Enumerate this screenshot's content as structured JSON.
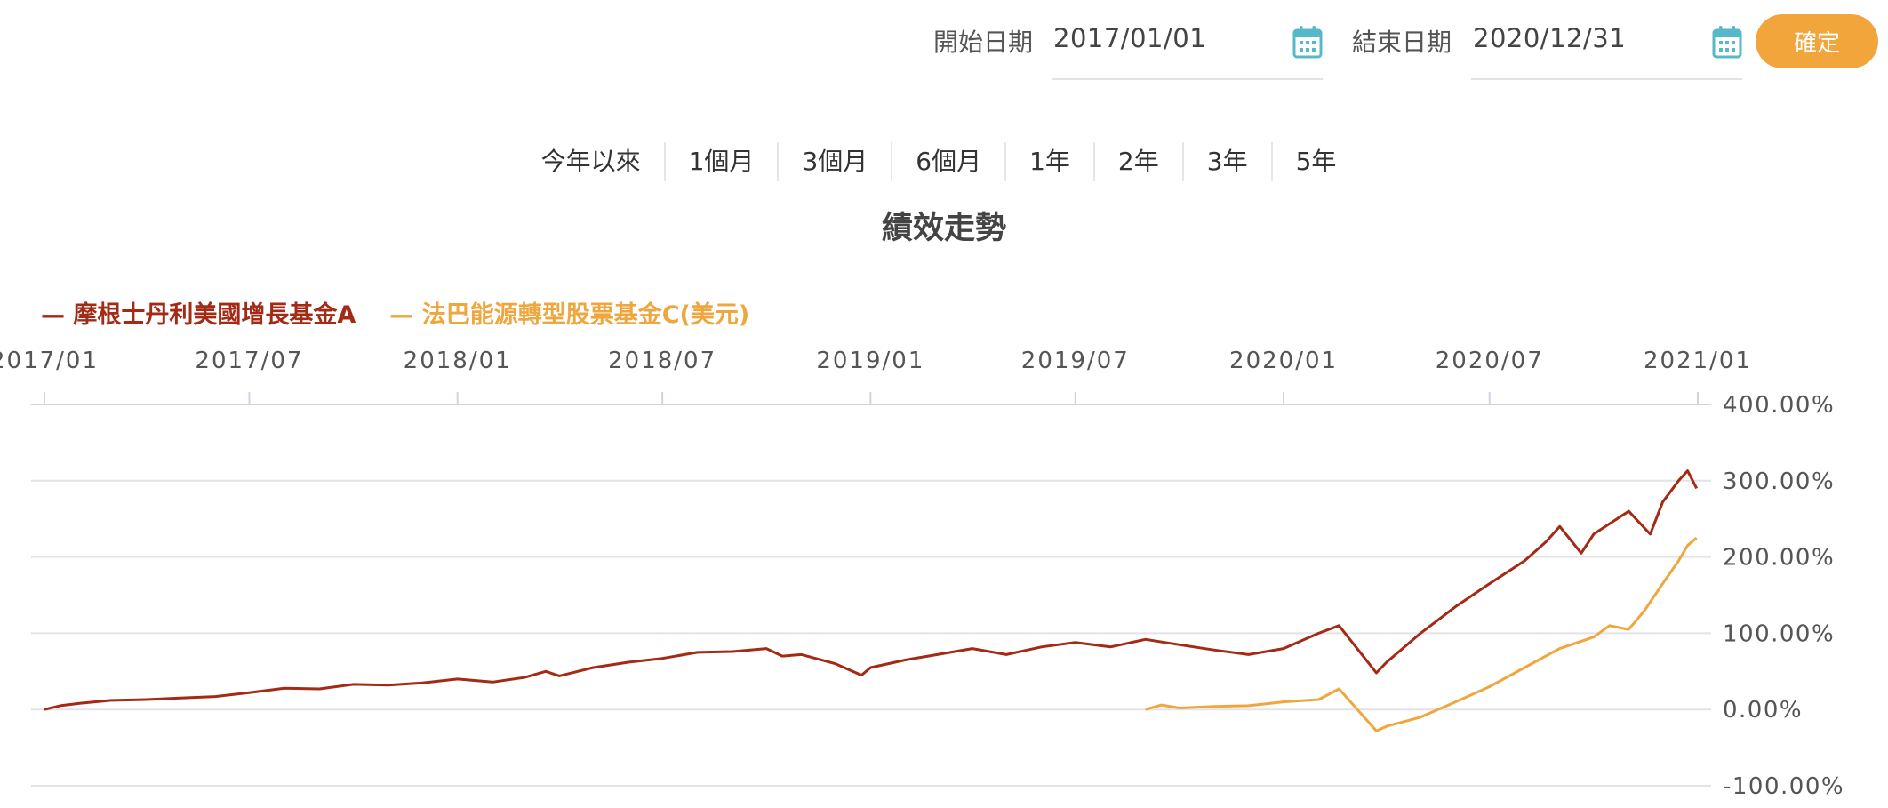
{
  "date_range": {
    "start_label": "開始日期",
    "start_value": "2017/01/01",
    "end_label": "結束日期",
    "end_value": "2020/12/31",
    "confirm_label": "確定",
    "icon": "calendar-icon"
  },
  "range_tabs": [
    "今年以來",
    "1個月",
    "3個月",
    "6個月",
    "1年",
    "2年",
    "3年",
    "5年"
  ],
  "colors": {
    "accent": "#f1a53a",
    "icon": "#55b9c9",
    "series_a": "#a32a14",
    "series_b": "#eea73e",
    "grid": "#e3e3e8"
  },
  "chart_data": {
    "type": "line",
    "title": "績效走勢",
    "legend_position": "top-left",
    "x_axis_position": "top",
    "y_axis_position": "right",
    "x_range": [
      "2017-01-01",
      "2021-01-01"
    ],
    "y_range": [
      -100,
      400
    ],
    "x_ticks": [
      "2017/01",
      "2017/07",
      "2018/01",
      "2018/07",
      "2019/01",
      "2019/07",
      "2020/01",
      "2020/07",
      "2021/01"
    ],
    "y_ticks": [
      "400.00%",
      "300.00%",
      "200.00%",
      "100.00%",
      "0.00%",
      "-100.00%"
    ],
    "y_tick_values": [
      400,
      300,
      200,
      100,
      0,
      -100
    ],
    "grid": true,
    "series": [
      {
        "name": "摩根士丹利美國增長基金A",
        "legend_label": "— 摩根士丹利美國增長基金A",
        "points": [
          [
            "2017-01-01",
            0
          ],
          [
            "2017-01-15",
            5
          ],
          [
            "2017-02-01",
            8
          ],
          [
            "2017-03-01",
            12
          ],
          [
            "2017-04-01",
            13
          ],
          [
            "2017-05-01",
            15
          ],
          [
            "2017-06-01",
            17
          ],
          [
            "2017-07-01",
            22
          ],
          [
            "2017-08-01",
            28
          ],
          [
            "2017-09-01",
            27
          ],
          [
            "2017-10-01",
            33
          ],
          [
            "2017-11-01",
            32
          ],
          [
            "2017-12-01",
            35
          ],
          [
            "2018-01-01",
            40
          ],
          [
            "2018-02-01",
            36
          ],
          [
            "2018-03-01",
            42
          ],
          [
            "2018-03-20",
            50
          ],
          [
            "2018-04-01",
            44
          ],
          [
            "2018-05-01",
            55
          ],
          [
            "2018-06-01",
            62
          ],
          [
            "2018-07-01",
            67
          ],
          [
            "2018-08-01",
            75
          ],
          [
            "2018-09-01",
            76
          ],
          [
            "2018-10-01",
            80
          ],
          [
            "2018-10-15",
            70
          ],
          [
            "2018-11-01",
            72
          ],
          [
            "2018-12-01",
            60
          ],
          [
            "2018-12-24",
            45
          ],
          [
            "2019-01-01",
            55
          ],
          [
            "2019-02-01",
            65
          ],
          [
            "2019-03-01",
            72
          ],
          [
            "2019-04-01",
            80
          ],
          [
            "2019-05-01",
            72
          ],
          [
            "2019-06-01",
            82
          ],
          [
            "2019-07-01",
            88
          ],
          [
            "2019-08-01",
            82
          ],
          [
            "2019-09-01",
            92
          ],
          [
            "2019-10-01",
            85
          ],
          [
            "2019-11-01",
            78
          ],
          [
            "2019-12-01",
            72
          ],
          [
            "2020-01-01",
            80
          ],
          [
            "2020-02-01",
            100
          ],
          [
            "2020-02-19",
            110
          ],
          [
            "2020-03-23",
            48
          ],
          [
            "2020-04-01",
            62
          ],
          [
            "2020-05-01",
            100
          ],
          [
            "2020-06-01",
            135
          ],
          [
            "2020-07-01",
            165
          ],
          [
            "2020-08-01",
            195
          ],
          [
            "2020-08-20",
            220
          ],
          [
            "2020-09-01",
            240
          ],
          [
            "2020-09-20",
            205
          ],
          [
            "2020-10-01",
            230
          ],
          [
            "2020-11-01",
            260
          ],
          [
            "2020-11-20",
            230
          ],
          [
            "2020-12-01",
            272
          ],
          [
            "2020-12-15",
            300
          ],
          [
            "2020-12-23",
            313
          ],
          [
            "2020-12-31",
            290
          ]
        ]
      },
      {
        "name": "法巴能源轉型股票基金C(美元)",
        "legend_label": "— 法巴能源轉型股票基金C(美元)",
        "points": [
          [
            "2019-09-01",
            0
          ],
          [
            "2019-09-15",
            6
          ],
          [
            "2019-10-01",
            2
          ],
          [
            "2019-11-01",
            4
          ],
          [
            "2019-12-01",
            5
          ],
          [
            "2020-01-01",
            10
          ],
          [
            "2020-02-01",
            13
          ],
          [
            "2020-02-19",
            27
          ],
          [
            "2020-03-23",
            -28
          ],
          [
            "2020-04-01",
            -22
          ],
          [
            "2020-05-01",
            -10
          ],
          [
            "2020-06-01",
            10
          ],
          [
            "2020-07-01",
            30
          ],
          [
            "2020-08-01",
            55
          ],
          [
            "2020-09-01",
            80
          ],
          [
            "2020-10-01",
            95
          ],
          [
            "2020-10-15",
            110
          ],
          [
            "2020-11-01",
            105
          ],
          [
            "2020-11-15",
            130
          ],
          [
            "2020-12-01",
            165
          ],
          [
            "2020-12-15",
            195
          ],
          [
            "2020-12-23",
            215
          ],
          [
            "2020-12-31",
            225
          ]
        ]
      }
    ]
  }
}
